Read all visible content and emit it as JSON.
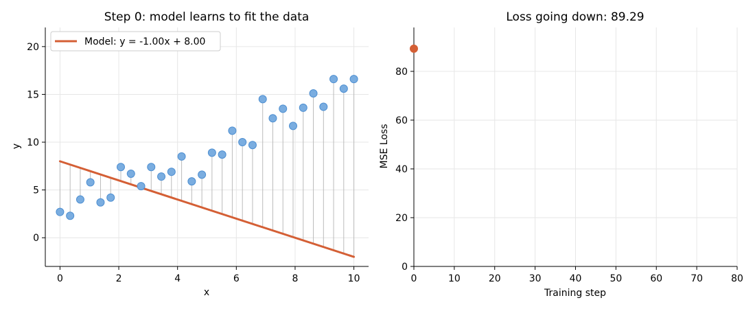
{
  "chart_data": [
    {
      "type": "scatter",
      "title": "Step 0: model learns to fit the data",
      "xlabel": "x",
      "ylabel": "y",
      "xlim": [
        -0.5,
        10.5
      ],
      "ylim": [
        -3,
        22
      ],
      "xticks": [
        0,
        2,
        4,
        6,
        8,
        10
      ],
      "yticks": [
        0,
        5,
        10,
        15,
        20
      ],
      "grid": true,
      "legend_position": "top-left",
      "point_color": "#7aade0",
      "point_edge_color": "#4e8fd1",
      "line_color": "#d45f35",
      "residual_color": "#bbbbbb",
      "points": {
        "x": [
          0.0,
          0.345,
          0.69,
          1.034,
          1.379,
          1.724,
          2.069,
          2.414,
          2.759,
          3.103,
          3.448,
          3.793,
          4.138,
          4.483,
          4.828,
          5.172,
          5.517,
          5.862,
          6.207,
          6.552,
          6.897,
          7.241,
          7.586,
          7.931,
          8.276,
          8.621,
          8.966,
          9.31,
          9.655,
          10.0
        ],
        "y": [
          2.7,
          2.3,
          4.0,
          5.8,
          3.7,
          4.2,
          7.4,
          6.7,
          5.4,
          7.4,
          6.4,
          6.9,
          8.5,
          5.9,
          6.6,
          8.9,
          8.7,
          11.2,
          10.0,
          9.7,
          14.5,
          12.5,
          13.5,
          11.7,
          13.6,
          15.1,
          13.7,
          16.6,
          15.6,
          16.6
        ]
      },
      "series": [
        {
          "name": "Model: y = -1.00x + 8.00",
          "slope": -1.0,
          "intercept": 8.0,
          "x_range": [
            0,
            10
          ]
        }
      ]
    },
    {
      "type": "line",
      "title": "Loss going down: 89.29",
      "xlabel": "Training step",
      "ylabel": "MSE Loss",
      "xlim": [
        0,
        80
      ],
      "ylim": [
        0,
        98
      ],
      "xticks": [
        0,
        10,
        20,
        30,
        40,
        50,
        60,
        70,
        80
      ],
      "yticks": [
        0,
        20,
        40,
        60,
        80
      ],
      "grid": true,
      "marker_color": "#d45f35",
      "series": [
        {
          "x": [
            0
          ],
          "y": [
            89.29
          ]
        }
      ]
    }
  ]
}
